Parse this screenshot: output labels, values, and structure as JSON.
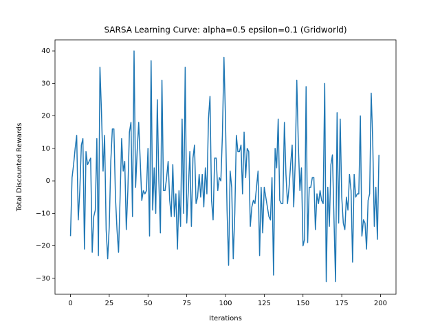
{
  "chart_data": {
    "type": "line",
    "title": "SARSA Learning Curve: alpha=0.5 epsilon=0.1 (Gridworld)",
    "x_label": "Iterations",
    "y_label": "Total Discounted Rewards",
    "x": [
      0,
      1,
      2,
      3,
      4,
      5,
      6,
      7,
      8,
      9,
      10,
      11,
      12,
      13,
      14,
      15,
      16,
      17,
      18,
      19,
      20,
      21,
      22,
      23,
      24,
      25,
      26,
      27,
      28,
      29,
      30,
      31,
      32,
      33,
      34,
      35,
      36,
      37,
      38,
      39,
      40,
      41,
      42,
      43,
      44,
      45,
      46,
      47,
      48,
      49,
      50,
      51,
      52,
      53,
      54,
      55,
      56,
      57,
      58,
      59,
      60,
      61,
      62,
      63,
      64,
      65,
      66,
      67,
      68,
      69,
      70,
      71,
      72,
      73,
      74,
      75,
      76,
      77,
      78,
      79,
      80,
      81,
      82,
      83,
      84,
      85,
      86,
      87,
      88,
      89,
      90,
      91,
      92,
      93,
      94,
      95,
      96,
      97,
      98,
      99,
      100,
      101,
      102,
      103,
      104,
      105,
      106,
      107,
      108,
      109,
      110,
      111,
      112,
      113,
      114,
      115,
      116,
      117,
      118,
      119,
      120,
      121,
      122,
      123,
      124,
      125,
      126,
      127,
      128,
      129,
      130,
      131,
      132,
      133,
      134,
      135,
      136,
      137,
      138,
      139,
      140,
      141,
      142,
      143,
      144,
      145,
      146,
      147,
      148,
      149,
      150,
      151,
      152,
      153,
      154,
      155,
      156,
      157,
      158,
      159,
      160,
      161,
      162,
      163,
      164,
      165,
      166,
      167,
      168,
      169,
      170,
      171,
      172,
      173,
      174,
      175,
      176,
      177,
      178,
      179,
      180,
      181,
      182,
      183,
      184,
      185,
      186,
      187,
      188,
      189,
      190,
      191,
      192,
      193,
      194,
      195,
      196,
      197,
      198,
      199
    ],
    "series": [
      {
        "name": "SARSA",
        "color": "#1f77b4",
        "values": [
          -17,
          1,
          5,
          10,
          14,
          -12,
          -3,
          11,
          13,
          -21,
          9,
          5,
          6,
          7,
          -22,
          -11,
          -9,
          13,
          -23,
          35,
          21,
          3,
          14,
          -15,
          -24,
          -14,
          6,
          16,
          16,
          -5,
          -15,
          -22,
          -5,
          13,
          3,
          6,
          -15,
          -3,
          15,
          18,
          -11,
          40,
          -2,
          9,
          18,
          6,
          -6,
          -3,
          -4,
          -3,
          10,
          -17,
          37,
          -9,
          4,
          -10,
          25,
          0,
          -16,
          31,
          -3,
          -3,
          1,
          6,
          -6,
          -11,
          5,
          -11,
          -4,
          -21,
          -3,
          -14,
          19,
          -10,
          35,
          -13,
          -3,
          9,
          -14,
          7,
          11,
          -7,
          -5,
          2,
          -5,
          2,
          -8,
          4,
          -4,
          19,
          26,
          -6,
          -12,
          7,
          7,
          -3,
          1,
          0,
          14,
          38,
          19,
          -9,
          -26,
          3,
          -2,
          -24,
          -10,
          14,
          9,
          9,
          11,
          -4,
          15,
          1,
          10,
          9,
          -14,
          -8,
          -6,
          -7,
          -2,
          3,
          -23,
          -2,
          -16,
          -2,
          -5,
          -8,
          -11,
          -12,
          1,
          -29,
          10,
          4,
          19,
          -6,
          -7,
          -7,
          18,
          2,
          -7,
          -2,
          5,
          11,
          -8,
          6,
          31,
          11,
          -3,
          4,
          -20,
          -18,
          29,
          -19,
          -2,
          -2,
          1,
          1,
          -15,
          -4,
          -7,
          -3,
          -6,
          -7,
          30,
          -31,
          -2,
          -14,
          5,
          8,
          -12,
          -31,
          21,
          -13,
          19,
          -5,
          -13,
          -15,
          -5,
          -9,
          2,
          -3,
          -25,
          2,
          -5,
          -4,
          -4,
          20,
          -17,
          -12,
          -13,
          -21,
          -6,
          -4,
          27,
          12,
          -14,
          -2,
          -18,
          8
        ]
      }
    ],
    "xlim": [
      -10,
      210
    ],
    "ylim": [
      -34.9,
      43.4
    ],
    "xticks": [
      0,
      25,
      50,
      75,
      100,
      125,
      150,
      175,
      200
    ],
    "yticks": [
      {
        "value": -30,
        "label": "−30"
      },
      {
        "value": -20,
        "label": "−20"
      },
      {
        "value": -10,
        "label": "−10"
      },
      0,
      10,
      20,
      30,
      40
    ]
  }
}
